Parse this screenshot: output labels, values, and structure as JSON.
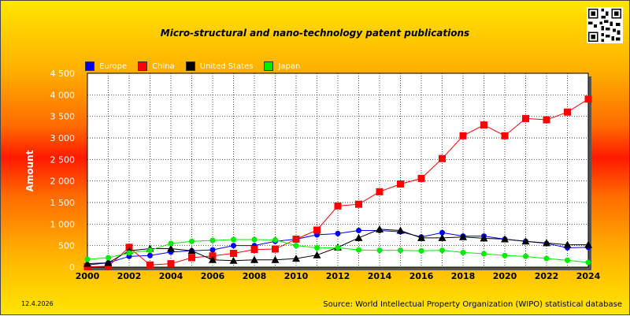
{
  "chart_data": {
    "type": "line",
    "title": "Micro-structural and nano-technology patent publications",
    "ylabel": "Amount",
    "xlabel": "",
    "x": [
      2000,
      2001,
      2002,
      2003,
      2004,
      2005,
      2006,
      2007,
      2008,
      2009,
      2010,
      2011,
      2012,
      2013,
      2014,
      2015,
      2016,
      2017,
      2018,
      2019,
      2020,
      2021,
      2022,
      2023,
      2024
    ],
    "xlim": [
      2000,
      2024
    ],
    "ylim": [
      0,
      4500
    ],
    "x_ticks": [
      "2000",
      "2002",
      "2004",
      "2006",
      "2008",
      "2010",
      "2012",
      "2014",
      "2016",
      "2018",
      "2020",
      "2022",
      "2024"
    ],
    "y_ticks": [
      "0",
      "500",
      "1 000",
      "1 500",
      "2 000",
      "2 500",
      "3 000",
      "3 500",
      "4 000",
      "4 500"
    ],
    "y_tick_values": [
      0,
      500,
      1000,
      1500,
      2000,
      2500,
      3000,
      3500,
      4000,
      4500
    ],
    "grid": true,
    "legend_position": "top-left",
    "series": [
      {
        "name": "Europe",
        "color": "#0000ff",
        "marker": "circle",
        "values": [
          50,
          100,
          250,
          270,
          350,
          380,
          400,
          500,
          500,
          600,
          650,
          750,
          780,
          850,
          850,
          820,
          700,
          800,
          720,
          720,
          650,
          600,
          550,
          450,
          460
        ]
      },
      {
        "name": "China",
        "color": "#ff0000",
        "marker": "square",
        "values": [
          10,
          20,
          460,
          50,
          80,
          220,
          260,
          320,
          410,
          420,
          650,
          860,
          1420,
          1460,
          1750,
          1930,
          2060,
          2520,
          3050,
          3300,
          3050,
          3450,
          3420,
          3600,
          3900
        ]
      },
      {
        "name": "United States",
        "color": "#000000",
        "marker": "triangle",
        "values": [
          80,
          100,
          380,
          430,
          430,
          380,
          170,
          150,
          170,
          170,
          200,
          280,
          460,
          680,
          880,
          850,
          680,
          680,
          700,
          670,
          650,
          600,
          560,
          520,
          520
        ]
      },
      {
        "name": "Japan",
        "color": "#00ee00",
        "marker": "circle",
        "values": [
          180,
          220,
          330,
          390,
          550,
          600,
          620,
          640,
          640,
          630,
          500,
          450,
          450,
          400,
          390,
          390,
          380,
          390,
          340,
          310,
          270,
          250,
          200,
          160,
          110
        ]
      }
    ]
  },
  "footer": {
    "date": "12.4.2026",
    "source": "Source: World Intellectual Property Organization (WIPO) statistical database"
  },
  "colors": {
    "plot_background": "#ffffff",
    "grid": "#000000",
    "tick_text": "#ffffff"
  }
}
